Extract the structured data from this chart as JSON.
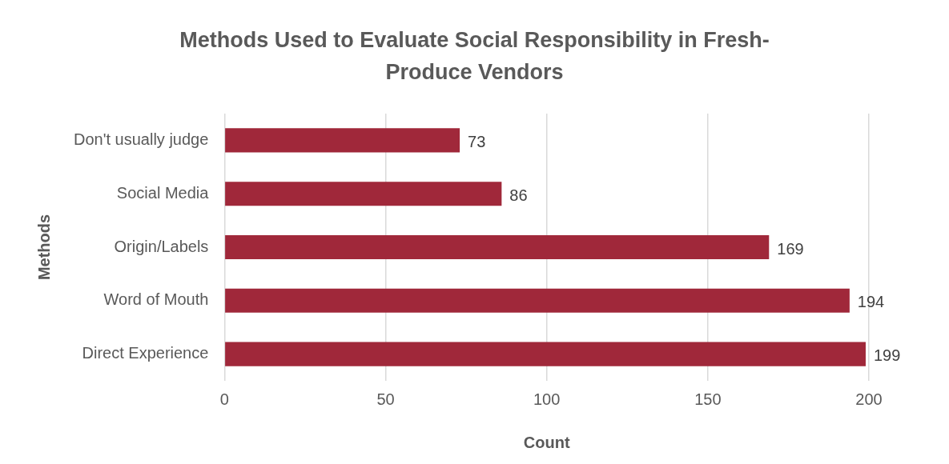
{
  "chart_data": {
    "type": "bar",
    "orientation": "horizontal",
    "title": "Methods Used to Evaluate Social Responsibility in Fresh-Produce Vendors",
    "xlabel": "Count",
    "ylabel": "Methods",
    "categories": [
      "Don't usually judge",
      "Social Media",
      "Origin/Labels",
      "Word of Mouth",
      "Direct Experience"
    ],
    "values": [
      73,
      86,
      169,
      194,
      199
    ],
    "color": "#a0283a",
    "xlim": [
      0,
      200
    ],
    "xticks": [
      0,
      50,
      100,
      150,
      200
    ],
    "grid": "x",
    "data_labels": true
  }
}
